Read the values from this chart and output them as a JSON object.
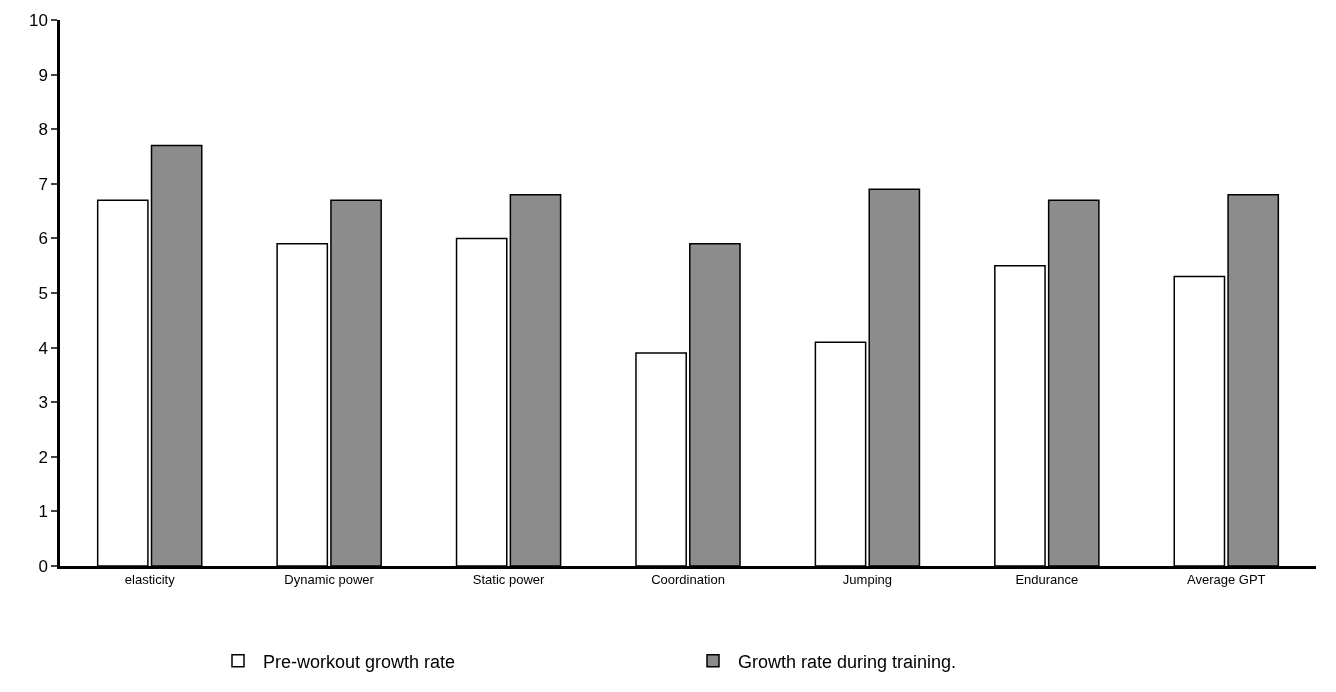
{
  "chart_data": {
    "type": "bar",
    "categories": [
      "elasticity",
      "Dynamic power",
      "Static power",
      "Coordination",
      "Jumping",
      "Endurance",
      "Average GPT"
    ],
    "series": [
      {
        "name": "Pre-workout growth rate",
        "color": "#ffffff",
        "values": [
          6.7,
          5.9,
          6.0,
          3.9,
          4.1,
          5.5,
          5.3
        ]
      },
      {
        "name": "Growth rate during training.",
        "color": "#8c8c8c",
        "values": [
          7.7,
          6.7,
          6.8,
          5.9,
          6.9,
          6.7,
          6.8
        ]
      }
    ],
    "ylim": [
      0,
      10
    ],
    "yticks": [
      0,
      1,
      2,
      3,
      4,
      5,
      6,
      7,
      8,
      9,
      10
    ],
    "legend": "bottom"
  }
}
